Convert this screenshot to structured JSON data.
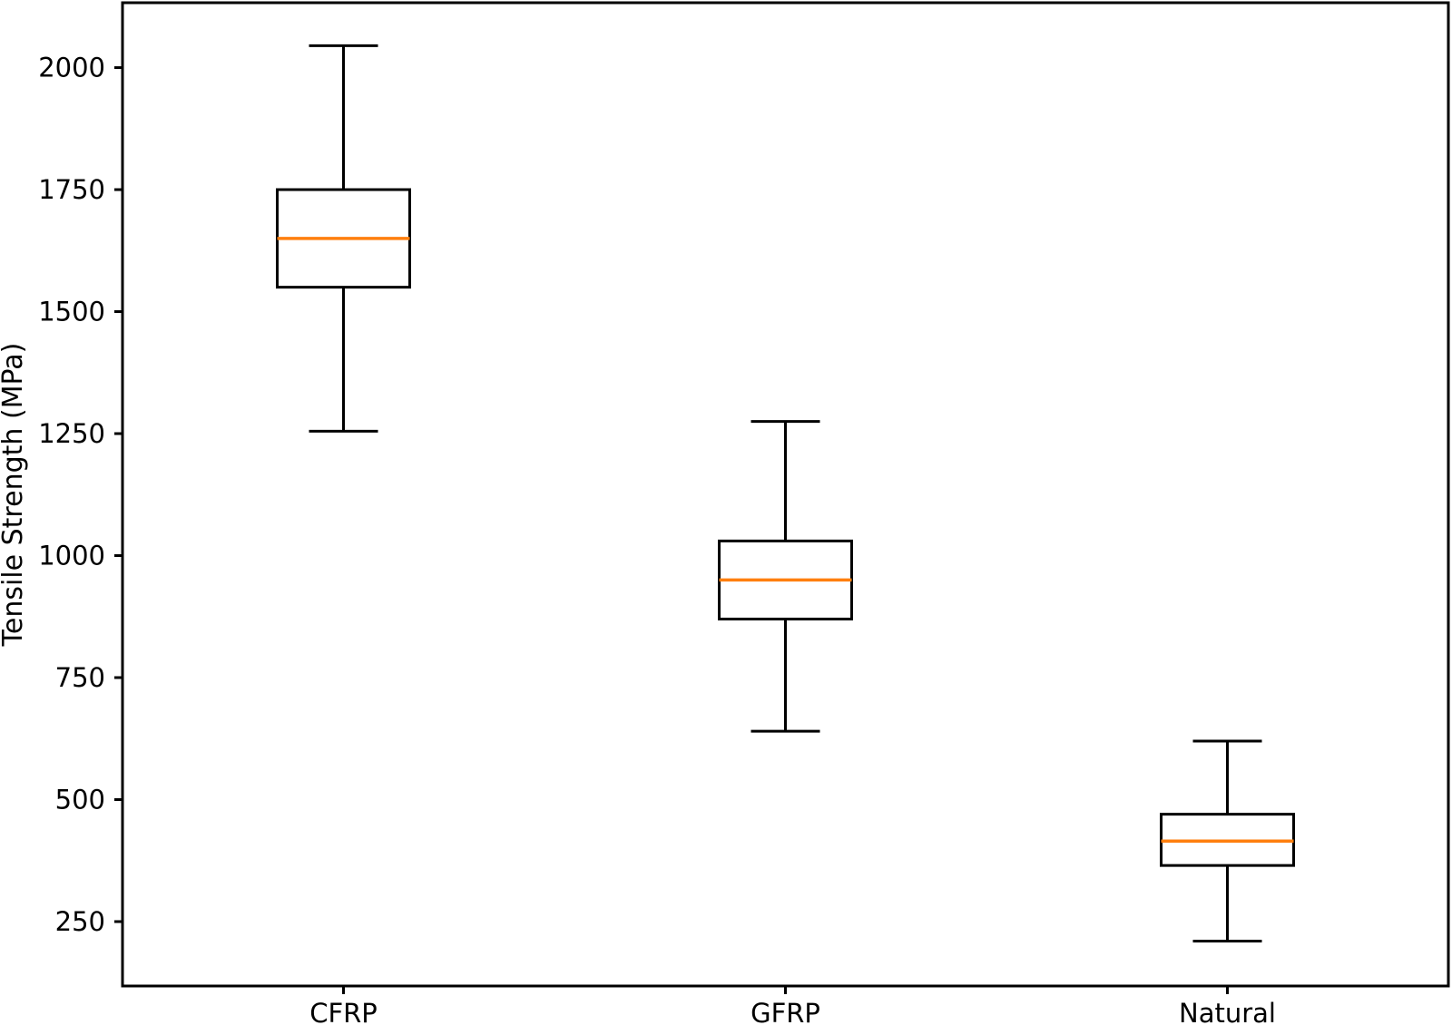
{
  "figure": {
    "background": "#ffffff"
  },
  "chart_data": {
    "type": "box",
    "title": "",
    "xlabel": "",
    "ylabel": "Tensile Strength (MPa)",
    "categories": [
      "CFRP",
      "GFRP",
      "Natural"
    ],
    "series": [
      {
        "name": "CFRP",
        "whisker_low": 1255,
        "q1": 1550,
        "median": 1650,
        "q3": 1750,
        "whisker_high": 2045
      },
      {
        "name": "GFRP",
        "whisker_low": 640,
        "q1": 870,
        "median": 950,
        "q3": 1030,
        "whisker_high": 1275
      },
      {
        "name": "Natural",
        "whisker_low": 210,
        "q1": 365,
        "median": 415,
        "q3": 470,
        "whisker_high": 620
      }
    ],
    "yticks": [
      250,
      500,
      750,
      1000,
      1250,
      1500,
      1750,
      2000
    ],
    "ylim": [
      118,
      2133
    ],
    "grid": false,
    "legend_position": null,
    "colors": {
      "line": "#000000",
      "median": "#ff7f0e",
      "background": "#ffffff"
    }
  }
}
